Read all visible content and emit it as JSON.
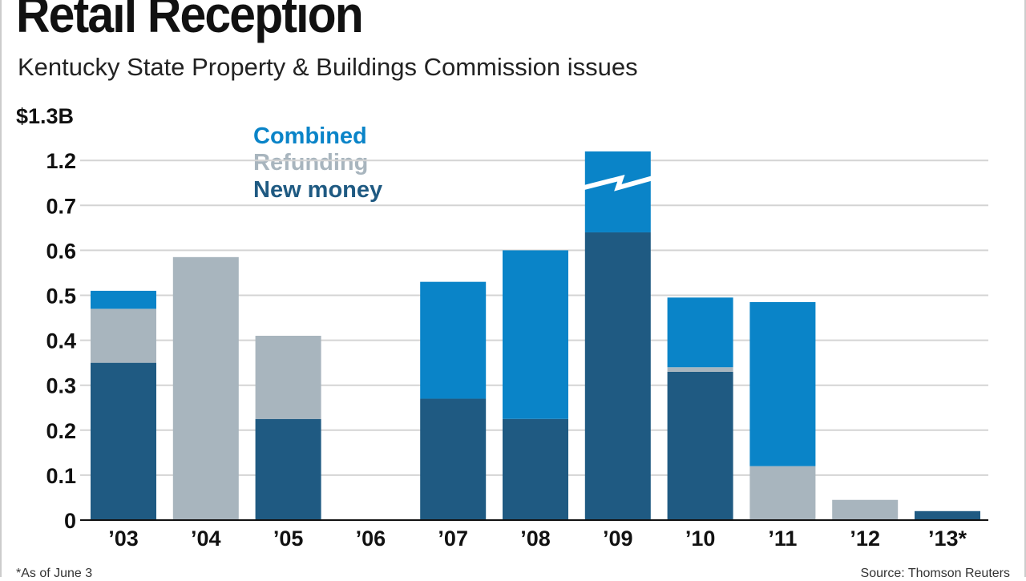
{
  "chart_data": {
    "type": "bar",
    "stacked": true,
    "title": "Retail Reception",
    "subtitle": "Kentucky State Property & Buildings Commission issues",
    "xlabel": "",
    "ylabel": "",
    "categories": [
      "’03",
      "’04",
      "’05",
      "’06",
      "’07",
      "’08",
      "’09",
      "’10",
      "’11",
      "’12",
      "’13*"
    ],
    "y_ticks": [
      "0",
      "0.1",
      "0.2",
      "0.3",
      "0.4",
      "0.5",
      "0.6",
      "0.7",
      "1.2",
      "$1.3B"
    ],
    "y_tick_values": [
      0,
      0.1,
      0.2,
      0.3,
      0.4,
      0.5,
      0.6,
      0.7,
      1.2,
      1.3
    ],
    "axis_break": [
      0.7,
      1.2
    ],
    "ylim": [
      0,
      1.3
    ],
    "grid": true,
    "legend_position": "top-left",
    "series": [
      {
        "name": "New money",
        "color": "#1f5a82",
        "values": [
          0.35,
          0,
          0.225,
          0,
          0.27,
          0.225,
          0.64,
          0.33,
          0,
          0,
          0.02
        ]
      },
      {
        "name": "Refunding",
        "color": "#a8b5be",
        "values": [
          0.12,
          0.585,
          0.185,
          0,
          0,
          0,
          0,
          0.01,
          0.12,
          0.045,
          0
        ]
      },
      {
        "name": "Combined",
        "color": "#0a84c8",
        "values": [
          0.04,
          0,
          0,
          0,
          0.26,
          0.375,
          0.58,
          0.155,
          0.365,
          0,
          0
        ]
      }
    ],
    "footnote": "*As of June 3",
    "source": "Source: Thomson Reuters"
  }
}
